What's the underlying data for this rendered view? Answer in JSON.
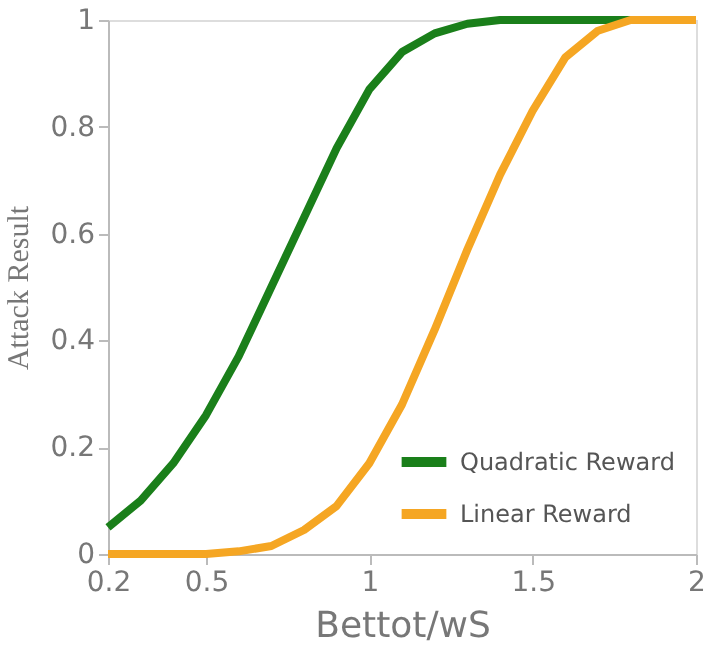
{
  "chart_data": {
    "type": "line",
    "xlabel": "Bettot/wS",
    "ylabel": "Attack Result",
    "x": [
      0.2,
      0.3,
      0.4,
      0.5,
      0.6,
      0.7,
      0.8,
      0.9,
      1.0,
      1.1,
      1.2,
      1.3,
      1.4,
      1.5,
      1.6,
      1.7,
      1.8,
      1.9,
      2.0
    ],
    "series": [
      {
        "name": "Quadratic Reward",
        "color": "#1a7f1a",
        "values": [
          0.05,
          0.1,
          0.17,
          0.26,
          0.37,
          0.5,
          0.63,
          0.76,
          0.87,
          0.94,
          0.975,
          0.993,
          1.0,
          1.0,
          1.0,
          1.0,
          1.0,
          null,
          null
        ]
      },
      {
        "name": "Linear Reward",
        "color": "#f5a623",
        "values": [
          0,
          0,
          0,
          0,
          0.005,
          0.015,
          0.045,
          0.09,
          0.17,
          0.28,
          0.42,
          0.57,
          0.71,
          0.83,
          0.93,
          0.98,
          1.0,
          1.0,
          1.0
        ]
      }
    ],
    "xlim": [
      0.2,
      2
    ],
    "xticks": [
      0.2,
      0.5,
      1,
      1.5,
      2
    ],
    "ylim": [
      0,
      1
    ],
    "yticks": [
      0,
      0.2,
      0.4,
      0.6,
      0.8,
      1
    ],
    "grid": false,
    "legend": "bottom right",
    "marker": "none",
    "line_style": "solid"
  }
}
